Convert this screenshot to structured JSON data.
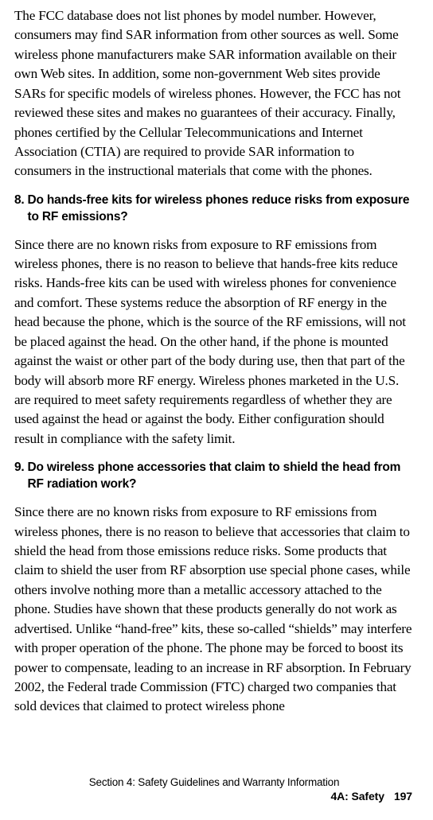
{
  "para1": "The FCC database does not list phones by model number. However, consumers may find SAR information from other sources as well. Some wireless phone manufacturers make SAR information available on their own Web sites. In addition, some non-government Web sites provide SARs for specific models of wireless phones. However, the FCC has not reviewed these sites and makes no guarantees of their accuracy. Finally, phones certified by the Cellular Telecommunications and Internet Association (CTIA) are required to provide SAR information to consumers in the instructional materials that come with the phones.",
  "q8_num": "8.",
  "q8_text": "Do hands-free kits for wireless phones reduce risks from exposure to RF emissions?",
  "para2": "Since there are no known risks from exposure to RF emissions from wireless phones, there is no reason to believe that hands-free kits reduce risks. Hands-free kits can be used with wireless phones for convenience and comfort. These systems reduce the absorption of RF energy in the head because the phone, which is the source of the RF emissions, will not be placed against the head. On the other hand, if the phone is mounted against the waist or other part of the body during use, then that part of the body will absorb more RF energy. Wireless phones marketed in the U.S. are required to meet safety requirements regardless of whether they are used against the head or against the body. Either configuration should result in compliance with the safety limit.",
  "q9_num": "9.",
  "q9_text": "Do wireless phone accessories that claim to shield the head from RF radiation work?",
  "para3": "Since there are no known risks from exposure to RF emissions from wireless phones, there is no reason to believe that accessories that claim to shield the head from those emissions reduce risks. Some products that claim to shield the user from RF absorption use special phone cases, while others involve nothing more than a metallic accessory attached to the phone. Studies have shown that these products generally do not work as advertised. Unlike “hand-free” kits, these so-called “shields” may interfere with proper operation of the phone. The phone may be forced to boost its power to compensate, leading to an increase in RF absorption. In February 2002, the Federal trade Commission (FTC) charged two companies that sold devices that claimed to protect wireless phone",
  "footer1": "Section 4: Safety Guidelines and Warranty Information",
  "footer2a": "4A: Safety",
  "footer2b": "197"
}
